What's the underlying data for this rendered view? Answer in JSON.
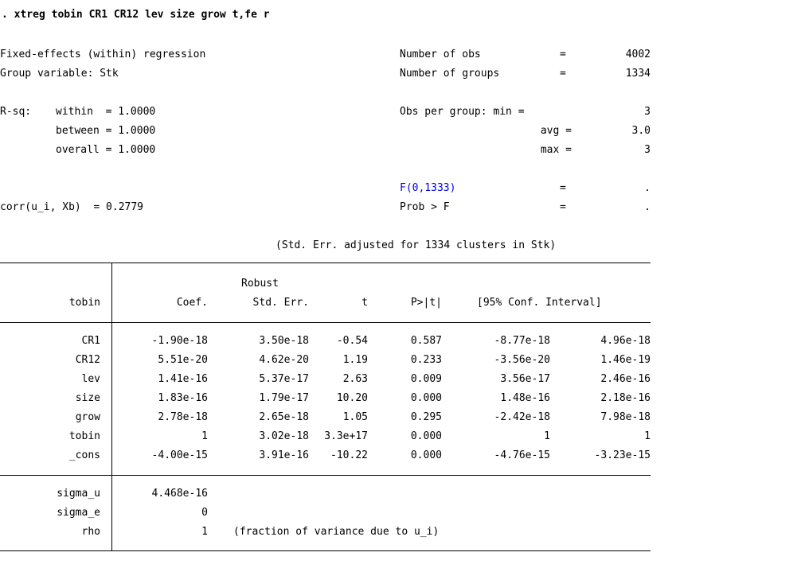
{
  "command": ". xtreg tobin CR1 CR12 lev size grow t,fe r",
  "header": {
    "model": "Fixed-effects (within) regression",
    "group_var": "Group variable: Stk",
    "rsq_label": "R-sq:",
    "within": "within  = 1.0000",
    "between": "between = 1.0000",
    "overall": "overall = 1.0000",
    "corr": "corr(u_i, Xb)  = 0.2779",
    "nobs_label": "Number of obs",
    "nobs_eq": "=",
    "nobs_val": "4002",
    "ngroups_label": "Number of groups",
    "ngroups_eq": "=",
    "ngroups_val": "1334",
    "opg_min_label": "Obs per group: min =",
    "opg_min_val": "3",
    "opg_avg_label": "avg =",
    "opg_avg_val": "3.0",
    "opg_max_label": "max =",
    "opg_max_val": "3",
    "f_label": "F(0,1333)",
    "f_eq": "=",
    "f_val": ".",
    "prob_label": "Prob > F",
    "prob_eq": "=",
    "prob_val": ".",
    "cluster_note": "(Std. Err. adjusted for 1334 clusters in Stk)"
  },
  "table": {
    "robust": "Robust",
    "headers": {
      "dep": "tobin",
      "coef": "Coef.",
      "se": "Std. Err.",
      "t": "t",
      "p": "P>|t|",
      "ci": "[95% Conf. Interval]"
    },
    "rows": [
      {
        "var": "CR1",
        "coef": "-1.90e-18",
        "se": "3.50e-18",
        "t": "-0.54",
        "p": "0.587",
        "lo": "-8.77e-18",
        "hi": "4.96e-18"
      },
      {
        "var": "CR12",
        "coef": "5.51e-20",
        "se": "4.62e-20",
        "t": "1.19",
        "p": "0.233",
        "lo": "-3.56e-20",
        "hi": "1.46e-19"
      },
      {
        "var": "lev",
        "coef": "1.41e-16",
        "se": "5.37e-17",
        "t": "2.63",
        "p": "0.009",
        "lo": "3.56e-17",
        "hi": "2.46e-16"
      },
      {
        "var": "size",
        "coef": "1.83e-16",
        "se": "1.79e-17",
        "t": "10.20",
        "p": "0.000",
        "lo": "1.48e-16",
        "hi": "2.18e-16"
      },
      {
        "var": "grow",
        "coef": "2.78e-18",
        "se": "2.65e-18",
        "t": "1.05",
        "p": "0.295",
        "lo": "-2.42e-18",
        "hi": "7.98e-18"
      },
      {
        "var": "tobin",
        "coef": "1",
        "se": "3.02e-18",
        "t": "3.3e+17",
        "p": "0.000",
        "lo": "1",
        "hi": "1"
      },
      {
        "var": "_cons",
        "coef": "-4.00e-15",
        "se": "3.91e-16",
        "t": "-10.22",
        "p": "0.000",
        "lo": "-4.76e-15",
        "hi": "-3.23e-15"
      }
    ],
    "sigma": [
      {
        "var": "sigma_u",
        "val": "4.468e-16"
      },
      {
        "var": "sigma_e",
        "val": "0"
      },
      {
        "var": "rho",
        "val": "1",
        "note": "(fraction of variance due to u_i)"
      }
    ]
  }
}
